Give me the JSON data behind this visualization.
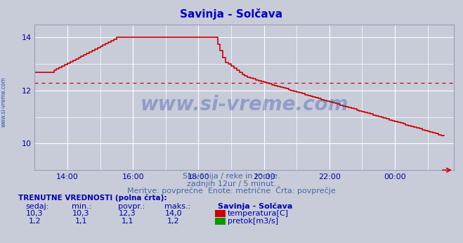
{
  "title": "Savinja - Solčava",
  "title_color": "#0000cc",
  "bg_color": "#c8ccd8",
  "plot_bg_color": "#c8ccd8",
  "grid_color": "#ffffff",
  "axis_color": "#9999bb",
  "tick_color": "#0000aa",
  "xlabel_color": "#4466aa",
  "ylim": [
    9.0,
    14.5
  ],
  "yticks": [
    10,
    12,
    14
  ],
  "xtick_labels": [
    "14:00",
    "16:00",
    "18:00",
    "20:00",
    "22:00",
    "00:00"
  ],
  "xtick_positions": [
    14,
    16,
    18,
    20,
    22,
    24
  ],
  "temp_color": "#cc0000",
  "flow_color": "#009900",
  "avg_value": 12.3,
  "subtitle1": "Slovenija / reke in morje.",
  "subtitle2": "zadnjih 12ur / 5 minut.",
  "subtitle3": "Meritve: povprečne  Enote: metrične  Črta: povprečje",
  "footer_bold": "TRENUTNE VREDNOSTI (polna črta):",
  "col_headers": [
    "sedaj:",
    "min.:",
    "povpr.:",
    "maks.:"
  ],
  "temp_row": [
    "10,3",
    "10,3",
    "12,3",
    "14,0"
  ],
  "flow_row": [
    "1,2",
    "1,1",
    "1,1",
    "1,2"
  ],
  "legend_title": "Savinja - Solčava",
  "legend_temp": "temperatura[C]",
  "legend_flow": "pretok[m3/s]",
  "watermark": "www.si-vreme.com",
  "watermark_color": "#1133aa",
  "side_label": "www.si-vreme.com",
  "side_label_color": "#3355aa"
}
